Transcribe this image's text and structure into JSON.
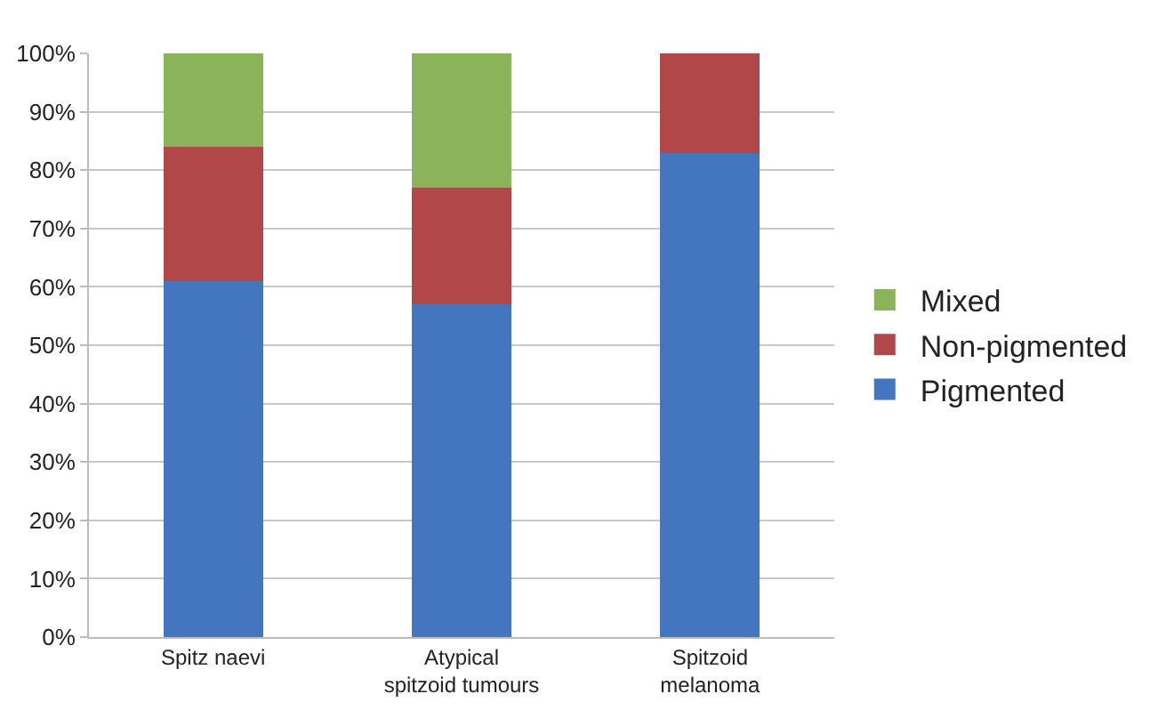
{
  "chart_data": {
    "type": "bar",
    "stacked": true,
    "categories": [
      "Spitz naevi",
      "Atypical spitzoid tumours",
      "Spitzoid melanoma"
    ],
    "series": [
      {
        "name": "Pigmented",
        "color": "#4376bf",
        "values": [
          61,
          57,
          83
        ]
      },
      {
        "name": "Non-pigmented",
        "color": "#b2474a",
        "values": [
          23,
          20,
          17
        ]
      },
      {
        "name": "Mixed",
        "color": "#8bb35a",
        "values": [
          16,
          23,
          0
        ]
      }
    ],
    "ylim": [
      0,
      100
    ],
    "yticks": [
      {
        "value": 0,
        "label": "0%"
      },
      {
        "value": 10,
        "label": "10%"
      },
      {
        "value": 20,
        "label": "20%"
      },
      {
        "value": 30,
        "label": "30%"
      },
      {
        "value": 40,
        "label": "40%"
      },
      {
        "value": 50,
        "label": "50%"
      },
      {
        "value": 60,
        "label": "60%"
      },
      {
        "value": 70,
        "label": "70%"
      },
      {
        "value": 80,
        "label": "80%"
      },
      {
        "value": 90,
        "label": "90%"
      },
      {
        "value": 100,
        "label": "100%"
      }
    ],
    "grid": "y",
    "legend": "right"
  }
}
